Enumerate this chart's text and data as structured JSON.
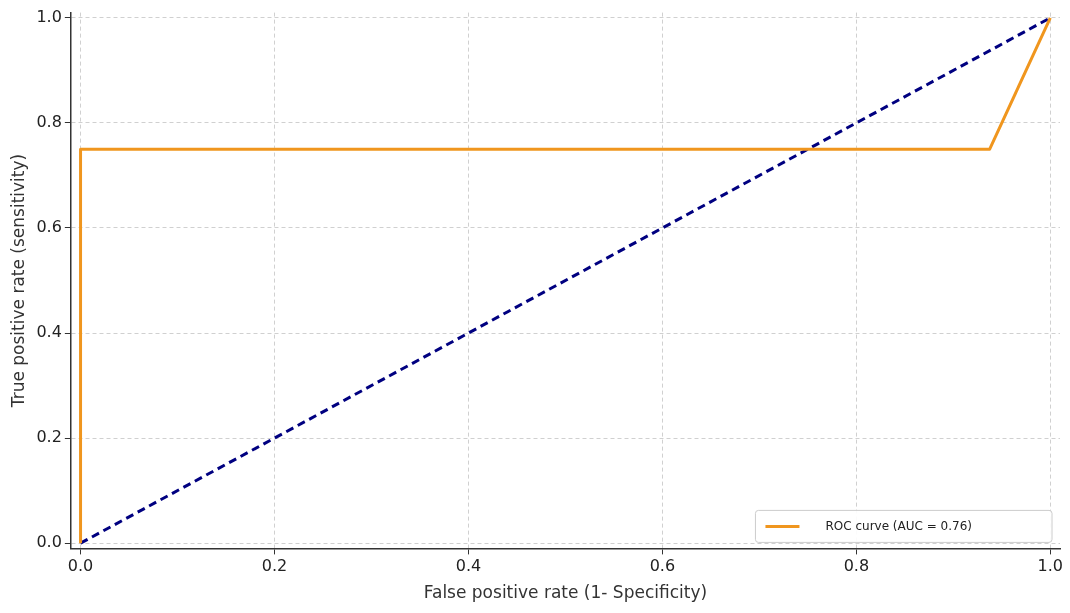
{
  "chart_data": {
    "type": "line",
    "xlabel": "False positive rate (1- Specificity)",
    "ylabel": "True positive rate (sensitivity)",
    "xlim": [
      -0.01,
      1.01
    ],
    "ylim": [
      -0.01,
      1.01
    ],
    "xticks": [
      {
        "value": 0,
        "label": "0.0"
      },
      0.2,
      0.4,
      0.6,
      0.8,
      {
        "value": 1,
        "label": "1.0"
      }
    ],
    "yticks": [
      {
        "value": 0,
        "label": "0.0"
      },
      0.2,
      0.4,
      0.6,
      0.8,
      {
        "value": 1,
        "label": "1.0"
      }
    ],
    "grid": true,
    "legend": "bottom right",
    "marker": "none",
    "series": [
      {
        "name": "ROC curve (AUC = 0.76)",
        "color": "#f0961e",
        "x": [
          0,
          0,
          0.9375,
          1
        ],
        "values": [
          0,
          0.75,
          0.75,
          1
        ],
        "line_style": "solid"
      },
      {
        "color": "#000080",
        "x": [
          0,
          1
        ],
        "values": [
          0,
          1
        ],
        "line_style": "dashed"
      }
    ]
  }
}
